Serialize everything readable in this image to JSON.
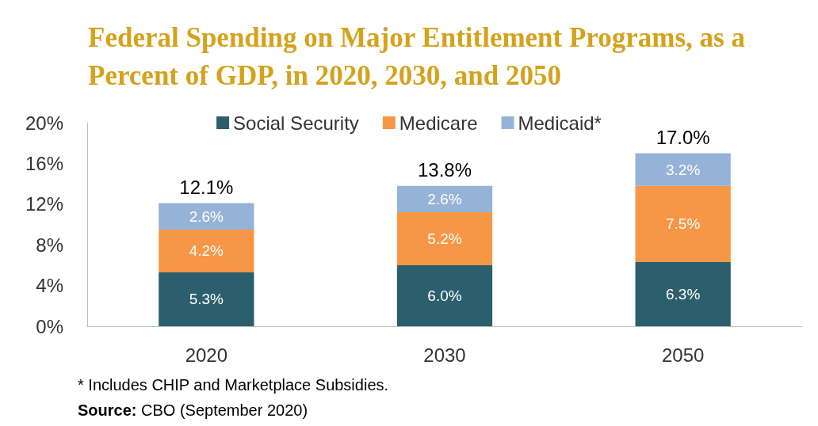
{
  "chart_data": {
    "type": "bar",
    "title": "Federal Spending on Major Entitlement Programs, as a Percent of GDP, in 2020, 2030, and 2050",
    "categories": [
      "2020",
      "2030",
      "2050"
    ],
    "series": [
      {
        "name": "Social Security",
        "color": "#2b5f6e",
        "values": [
          5.3,
          6.0,
          6.3
        ],
        "value_labels": [
          "5.3%",
          "6.0%",
          "6.3%"
        ]
      },
      {
        "name": "Medicare",
        "color": "#f79646",
        "values": [
          4.2,
          5.2,
          7.5
        ],
        "value_labels": [
          "4.2%",
          "5.2%",
          "7.5%"
        ]
      },
      {
        "name": "Medicaid*",
        "color": "#95b3d7",
        "values": [
          2.6,
          2.6,
          3.2
        ],
        "value_labels": [
          "2.6%",
          "2.6%",
          "3.2%"
        ]
      }
    ],
    "stacked": true,
    "totals": [
      "12.1%",
      "13.8%",
      "17.0%"
    ],
    "ylim": [
      0,
      20
    ],
    "yticks": [
      {
        "value": 0,
        "label": "0%"
      },
      {
        "value": 4,
        "label": "4%"
      },
      {
        "value": 8,
        "label": "8%"
      },
      {
        "value": 12,
        "label": "12%"
      },
      {
        "value": 16,
        "label": "16%"
      },
      {
        "value": 20,
        "label": "20%"
      }
    ],
    "grid": false,
    "legend": "top",
    "annotations": [
      "* Includes CHIP and Marketplace Subsidies.",
      "Source: CBO (September 2020)"
    ]
  }
}
